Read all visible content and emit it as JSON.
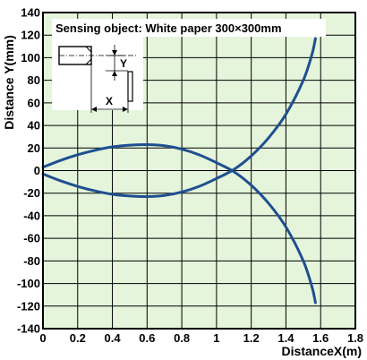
{
  "chart_data": {
    "type": "line",
    "annotation": "Sensing object: White paper 300×300mm",
    "xlabel": "DistanceX(m)",
    "ylabel": "Distance Y(mm)",
    "xlim": [
      0,
      1.8
    ],
    "ylim": [
      -140,
      140
    ],
    "x_ticks": [
      "0",
      "0.2",
      "0.4",
      "0.6",
      "0.8",
      "1",
      "1.2",
      "1.4",
      "1.6",
      "1.8"
    ],
    "y_ticks": [
      "-140",
      "-120",
      "-100",
      "-80",
      "-60",
      "-40",
      "-20",
      "0",
      "20",
      "40",
      "60",
      "80",
      "100",
      "120",
      "140"
    ],
    "grid": true,
    "background_color": "#e5f5dc",
    "line_color": "#1f4f8f",
    "series": [
      {
        "x": [
          0,
          0.1,
          0.2,
          0.3,
          0.4,
          0.5,
          0.6,
          0.7,
          0.8,
          0.9,
          1.0,
          1.1,
          1.2,
          1.3,
          1.4,
          1.5,
          1.55,
          1.57
        ],
        "y": [
          3,
          9,
          14,
          18,
          21,
          22.5,
          23,
          22,
          19,
          14,
          7,
          -1,
          -13,
          -29,
          -50,
          -80,
          -103,
          -117
        ]
      },
      {
        "x": [
          0,
          0.1,
          0.2,
          0.3,
          0.4,
          0.5,
          0.6,
          0.7,
          0.8,
          0.9,
          1.0,
          1.1,
          1.2,
          1.3,
          1.4,
          1.5,
          1.55,
          1.57
        ],
        "y": [
          -3,
          -9,
          -14,
          -18,
          -21,
          -22.5,
          -23,
          -22,
          -19,
          -14,
          -7,
          1,
          13,
          29,
          50,
          80,
          103,
          117
        ]
      }
    ],
    "inset": {
      "label_x": "X",
      "label_y": "Y"
    }
  }
}
